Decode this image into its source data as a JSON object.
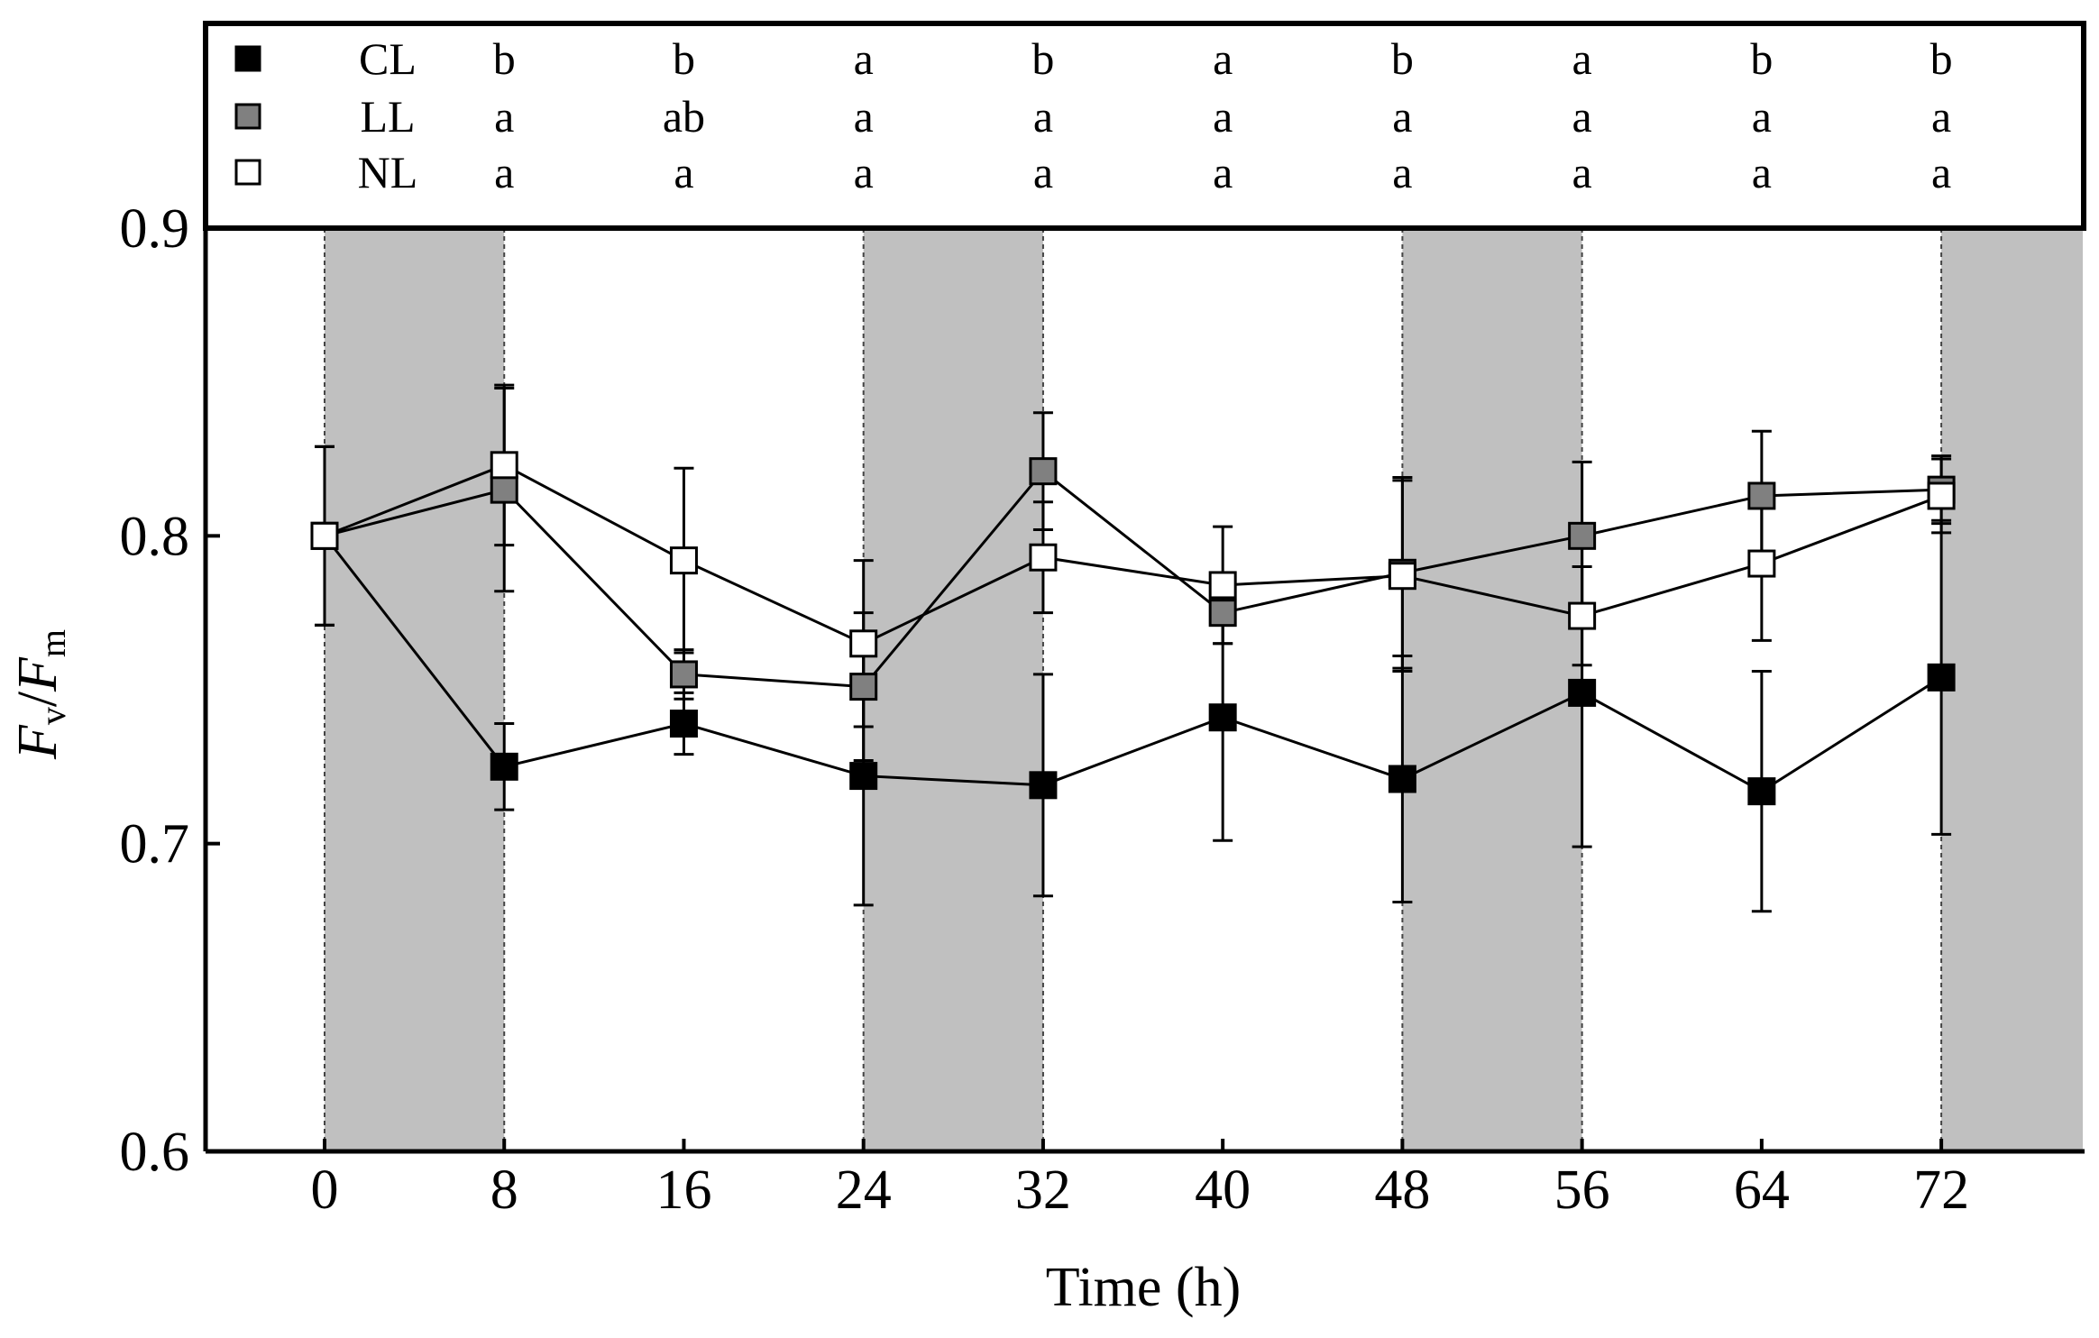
{
  "chart_data": {
    "type": "line",
    "xlabel": "Time (h)",
    "ylabel_main": "F",
    "ylabel_sub_v": "v",
    "ylabel_sep": "/",
    "ylabel_sub_m": "m",
    "x": [
      0,
      8,
      16,
      24,
      32,
      40,
      48,
      56,
      64,
      72
    ],
    "x_tick_labels": [
      "0",
      "8",
      "16",
      "24",
      "32",
      "40",
      "48",
      "56",
      "64",
      "72"
    ],
    "xlim": [
      -5.3,
      78.3
    ],
    "ylim": [
      0.6,
      0.9
    ],
    "y_ticks": [
      0.6,
      0.7,
      0.8,
      0.9
    ],
    "y_tick_labels": [
      "0.6",
      "0.7",
      "0.8",
      "0.9"
    ],
    "dark_periods": [
      [
        0,
        8
      ],
      [
        24,
        32
      ],
      [
        48,
        56
      ],
      [
        72,
        78.3
      ]
    ],
    "legend_position": "top panel above plot",
    "series": [
      {
        "name": "CL",
        "fill": "#000000",
        "values": [
          0.8,
          0.725,
          0.739,
          0.722,
          0.719,
          0.741,
          0.721,
          0.749,
          0.717,
          0.754
        ],
        "errors": [
          0.029,
          0.014,
          0.01,
          0.042,
          0.036,
          0.04,
          0.04,
          0.05,
          0.039,
          0.051
        ],
        "letters": [
          "b",
          "b",
          "a",
          "b",
          "a",
          "b",
          "a",
          "b",
          "b"
        ]
      },
      {
        "name": "LL",
        "fill": "#808080",
        "values": [
          0.8,
          0.815,
          0.755,
          0.751,
          0.821,
          0.775,
          0.788,
          0.8,
          0.813,
          0.815
        ],
        "errors": [
          0.029,
          0.033,
          0.008,
          0.024,
          0.019,
          0.01,
          0.031,
          0.024,
          0.021,
          0.011
        ],
        "letters": [
          "a",
          "ab",
          "a",
          "a",
          "a",
          "a",
          "a",
          "a",
          "a"
        ]
      },
      {
        "name": "NL",
        "fill": "#ffffff",
        "values": [
          0.8,
          0.823,
          0.792,
          0.765,
          0.793,
          0.784,
          0.787,
          0.774,
          0.791,
          0.813
        ],
        "errors": [
          0.029,
          0.026,
          0.03,
          0.027,
          0.018,
          0.019,
          0.031,
          0.016,
          0.025,
          0.012
        ],
        "letters": [
          "a",
          "a",
          "a",
          "a",
          "a",
          "a",
          "a",
          "a",
          "a"
        ]
      }
    ]
  }
}
